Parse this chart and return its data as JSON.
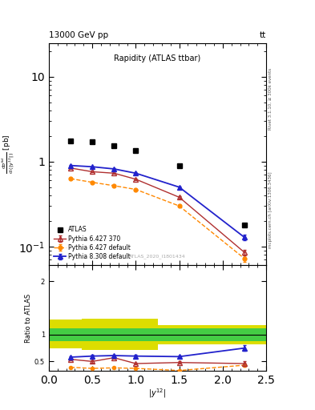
{
  "title_top": "13000 GeV pp",
  "title_top_right": "tt",
  "plot_title": "Rapidity (ATLAS ttbar)",
  "xlabel": "|y^{12}|",
  "ylabel_ratio": "Ratio to ATLAS",
  "rivet_label": "Rivet 3.1.10, ≥ 300k events",
  "mcplots_label": "mcplots.cern.ch [arXiv:1306.3436]",
  "atlas_id": "ATLAS_2020_I1801434",
  "atlas_x": [
    0.25,
    0.5,
    0.75,
    1.0,
    1.5,
    2.25
  ],
  "atlas_y": [
    1.75,
    1.7,
    1.55,
    1.35,
    0.9,
    0.18
  ],
  "pythia627_x": [
    0.25,
    0.5,
    0.75,
    1.0,
    1.5,
    2.25
  ],
  "pythia627_y": [
    0.84,
    0.76,
    0.73,
    0.62,
    0.38,
    0.085
  ],
  "pythia627_yerr": [
    0.015,
    0.012,
    0.012,
    0.012,
    0.01,
    0.007
  ],
  "pythia6def_x": [
    0.25,
    0.5,
    0.75,
    1.0,
    1.5,
    2.25
  ],
  "pythia6def_y": [
    0.63,
    0.57,
    0.52,
    0.47,
    0.3,
    0.072
  ],
  "pythia6def_yerr": [
    0.01,
    0.01,
    0.009,
    0.009,
    0.008,
    0.006
  ],
  "pythia8_x": [
    0.25,
    0.5,
    0.75,
    1.0,
    1.5,
    2.25
  ],
  "pythia8_y": [
    0.9,
    0.87,
    0.82,
    0.73,
    0.5,
    0.128
  ],
  "pythia8_yerr": [
    0.015,
    0.013,
    0.013,
    0.013,
    0.011,
    0.009
  ],
  "ratio_pythia627_x": [
    0.25,
    0.5,
    0.75,
    1.0,
    1.5,
    2.25
  ],
  "ratio_pythia627_y": [
    0.54,
    0.5,
    0.57,
    0.46,
    0.48,
    0.46
  ],
  "ratio_pythia627_yerr": [
    0.02,
    0.02,
    0.02,
    0.02,
    0.02,
    0.05
  ],
  "ratio_pythia8_x": [
    0.25,
    0.5,
    0.75,
    1.0,
    1.5,
    2.25
  ],
  "ratio_pythia8_y": [
    0.58,
    0.6,
    0.61,
    0.6,
    0.59,
    0.75
  ],
  "ratio_pythia8_yerr": [
    0.02,
    0.02,
    0.02,
    0.02,
    0.02,
    0.05
  ],
  "ratio_pythia6def_x": [
    0.25,
    0.5,
    0.75,
    1.0,
    1.5,
    2.25
  ],
  "ratio_pythia6def_y": [
    0.39,
    0.37,
    0.38,
    0.37,
    0.33,
    0.43
  ],
  "ratio_pythia6def_yerr": [
    0.01,
    0.01,
    0.01,
    0.01,
    0.01,
    0.03
  ],
  "band_x_edges": [
    0.0,
    0.375,
    0.625,
    0.875,
    1.25,
    1.75,
    2.5
  ],
  "band_green_low": [
    0.88,
    0.88,
    0.88,
    0.88,
    0.88,
    0.88
  ],
  "band_green_high": [
    1.12,
    1.12,
    1.12,
    1.12,
    1.12,
    1.12
  ],
  "band_yellow_low": [
    0.75,
    0.72,
    0.72,
    0.72,
    0.82,
    0.82
  ],
  "band_yellow_high": [
    1.28,
    1.3,
    1.3,
    1.3,
    1.18,
    1.18
  ],
  "color_pythia627": "#b03030",
  "color_pythia6def": "#ff8800",
  "color_pythia8": "#2222cc",
  "color_atlas": "#000000",
  "color_green_band": "#44cc44",
  "color_yellow_band": "#dddd00",
  "ylim_main": [
    0.06,
    25
  ],
  "ylim_ratio": [
    0.32,
    2.3
  ],
  "xlim": [
    0.0,
    2.5
  ]
}
